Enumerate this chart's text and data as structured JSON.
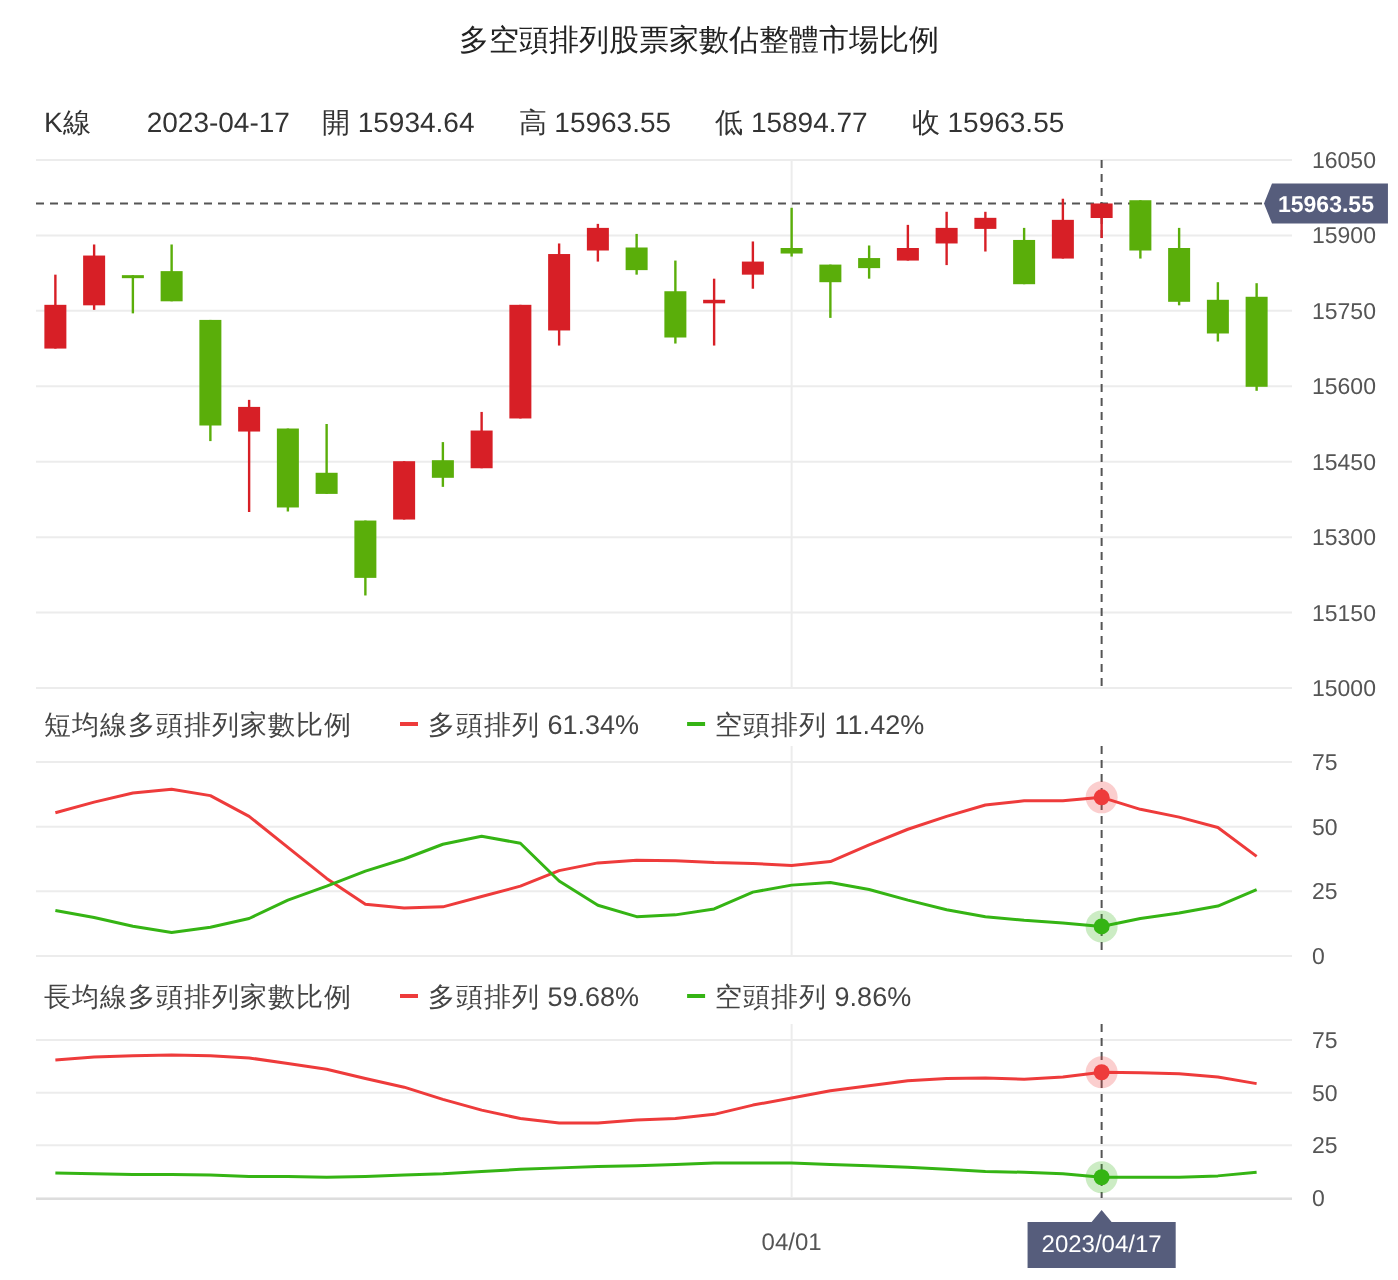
{
  "chart_data": [
    {
      "type": "candlestick",
      "title": "多空頭排列股票家數佔整體市場比例",
      "annotations": [
        "K線",
        "2023-04-17",
        "開 15934.64",
        "高 15963.55",
        "低 15894.77",
        "收 15963.55"
      ],
      "categories": [
        null,
        null,
        null,
        null,
        null,
        null,
        null,
        null,
        null,
        null,
        null,
        null,
        null,
        null,
        null,
        null,
        null,
        null,
        null,
        null,
        null,
        null,
        null,
        null,
        null,
        null,
        null,
        null,
        null,
        null,
        null,
        null
      ],
      "ohlc": [
        [
          15675,
          15822,
          15675,
          15762
        ],
        [
          15761,
          15882,
          15752,
          15860
        ],
        [
          15821,
          15821,
          15745,
          15815
        ],
        [
          15829,
          15882,
          15769,
          15769
        ],
        [
          15732,
          15732,
          15491,
          15522
        ],
        [
          15510,
          15573,
          15350,
          15559
        ],
        [
          15516,
          15516,
          15351,
          15359
        ],
        [
          15428,
          15525,
          15386,
          15386
        ],
        [
          15333,
          15333,
          15184,
          15219
        ],
        [
          15335,
          15451,
          15335,
          15451
        ],
        [
          15453,
          15489,
          15400,
          15418
        ],
        [
          15437,
          15549,
          15437,
          15512
        ],
        [
          15536,
          15762,
          15536,
          15762
        ],
        [
          15711,
          15884,
          15681,
          15863
        ],
        [
          15870,
          15923,
          15848,
          15915
        ],
        [
          15876,
          15903,
          15822,
          15831
        ],
        [
          15789,
          15850,
          15685,
          15697
        ],
        [
          15765,
          15814,
          15681,
          15772
        ],
        [
          15822,
          15888,
          15794,
          15848
        ],
        [
          15875,
          15955,
          15858,
          15864
        ],
        [
          15842,
          15842,
          15736,
          15807
        ],
        [
          15855,
          15880,
          15814,
          15835
        ],
        [
          15850,
          15921,
          15850,
          15875
        ],
        [
          15884,
          15947,
          15841,
          15915
        ],
        [
          15913,
          15947,
          15868,
          15935
        ],
        [
          15891,
          15915,
          15803,
          15803
        ],
        [
          15854,
          15973,
          15854,
          15931
        ],
        [
          15934.64,
          15963.55,
          15894.77,
          15963.55
        ],
        [
          15970,
          15970,
          15854,
          15870
        ],
        [
          15875,
          15915,
          15761,
          15768
        ],
        [
          15772,
          15807,
          15689,
          15705
        ],
        [
          15778,
          15805,
          15591,
          15599
        ]
      ],
      "colors": [
        "#d71f26",
        "#d71f26",
        "#5aae0a",
        "#5aae0a",
        "#5aae0a",
        "#d71f26",
        "#5aae0a",
        "#5aae0a",
        "#5aae0a",
        "#d71f26",
        "#5aae0a",
        "#d71f26",
        "#d71f26",
        "#d71f26",
        "#d71f26",
        "#5aae0a",
        "#5aae0a",
        "#d71f26",
        "#d71f26",
        "#5aae0a",
        "#5aae0a",
        "#5aae0a",
        "#d71f26",
        "#d71f26",
        "#d71f26",
        "#5aae0a",
        "#d71f26",
        "#d71f26",
        "#5aae0a",
        "#5aae0a",
        "#5aae0a",
        "#5aae0a"
      ],
      "ylim": [
        15000,
        16050
      ],
      "yticks": [
        15000,
        15150,
        15300,
        15450,
        15600,
        15750,
        15900,
        16050
      ],
      "ref_lines": [
        {
          "axis": "y",
          "value": 15963.55,
          "label": "15963.55",
          "line_style": "dashed",
          "color": "#555555"
        }
      ],
      "grid": true,
      "tick_labels": "y"
    },
    {
      "type": "line",
      "title": "短均線多頭排列家數比例",
      "legend": "top left",
      "categories": [
        null,
        null,
        null,
        null,
        null,
        null,
        null,
        null,
        null,
        null,
        null,
        null,
        null,
        null,
        null,
        null,
        null,
        null,
        null,
        null,
        null,
        null,
        null,
        null,
        null,
        null,
        null,
        null,
        null,
        null,
        null,
        null
      ],
      "series": [
        {
          "name": "多頭排列 61.34%",
          "color": "#ee3b3b",
          "values": [
            55.4,
            59.5,
            63,
            64.5,
            62,
            54,
            42,
            30,
            20,
            18.6,
            19,
            23,
            27,
            33,
            36,
            37,
            36.8,
            36.1,
            35.8,
            35,
            36.5,
            43,
            49,
            54,
            58.4,
            60,
            60,
            61.34,
            56.7,
            53.7,
            49.7,
            38.5
          ]
        },
        {
          "name": "空頭排列 11.42%",
          "color": "#35b414",
          "values": [
            17.6,
            14.9,
            11.5,
            9.1,
            11.1,
            14.5,
            21.6,
            27,
            32.8,
            37.5,
            43.2,
            46.3,
            43.6,
            29,
            19.6,
            15.2,
            15.9,
            18.2,
            24.7,
            27.4,
            28.4,
            25.7,
            21.6,
            17.9,
            15.2,
            13.8,
            12.8,
            11.42,
            14.5,
            16.6,
            19.3,
            25.7
          ]
        }
      ],
      "ylim": [
        0,
        75
      ],
      "yticks": [
        0,
        25,
        50,
        75
      ],
      "grid": true,
      "tick_labels": "y"
    },
    {
      "type": "line",
      "title": "長均線多頭排列家數比例",
      "legend": "top left",
      "categories": [
        null,
        null,
        null,
        null,
        null,
        null,
        null,
        null,
        null,
        null,
        null,
        null,
        null,
        null,
        null,
        null,
        null,
        null,
        null,
        "04/01",
        null,
        null,
        null,
        null,
        null,
        null,
        null,
        "2023/04/17",
        null,
        null,
        null,
        null
      ],
      "series": [
        {
          "name": "多頭排列 59.68%",
          "color": "#ee3b3b",
          "values": [
            65.5,
            66.9,
            67.5,
            67.9,
            67.5,
            66.5,
            63.8,
            61.1,
            56.7,
            52.6,
            46.8,
            41.7,
            37.7,
            35.6,
            35.6,
            37,
            37.7,
            39.7,
            44.1,
            47.5,
            50.9,
            53.3,
            55.7,
            56.7,
            57,
            56.4,
            57.4,
            59.68,
            59.4,
            59,
            57.4,
            54.3
          ]
        },
        {
          "name": "空頭排列 9.86%",
          "color": "#35b414",
          "values": [
            11.9,
            11.5,
            11.2,
            11.2,
            10.9,
            10.2,
            10.2,
            9.8,
            10.2,
            10.9,
            11.5,
            12.6,
            13.6,
            14.3,
            14.9,
            15.3,
            15.9,
            16.6,
            16.6,
            16.6,
            15.9,
            15.3,
            14.6,
            13.6,
            12.6,
            12.2,
            11.5,
            9.86,
            9.8,
            9.8,
            10.5,
            12.2
          ]
        }
      ],
      "ylim": [
        0,
        75
      ],
      "yticks": [
        0,
        25,
        50,
        75
      ],
      "ref_lines": [
        {
          "axis": "x",
          "value": "2023/04/17",
          "line_style": "dashed",
          "color": "#555555"
        }
      ],
      "grid": true
    }
  ]
}
